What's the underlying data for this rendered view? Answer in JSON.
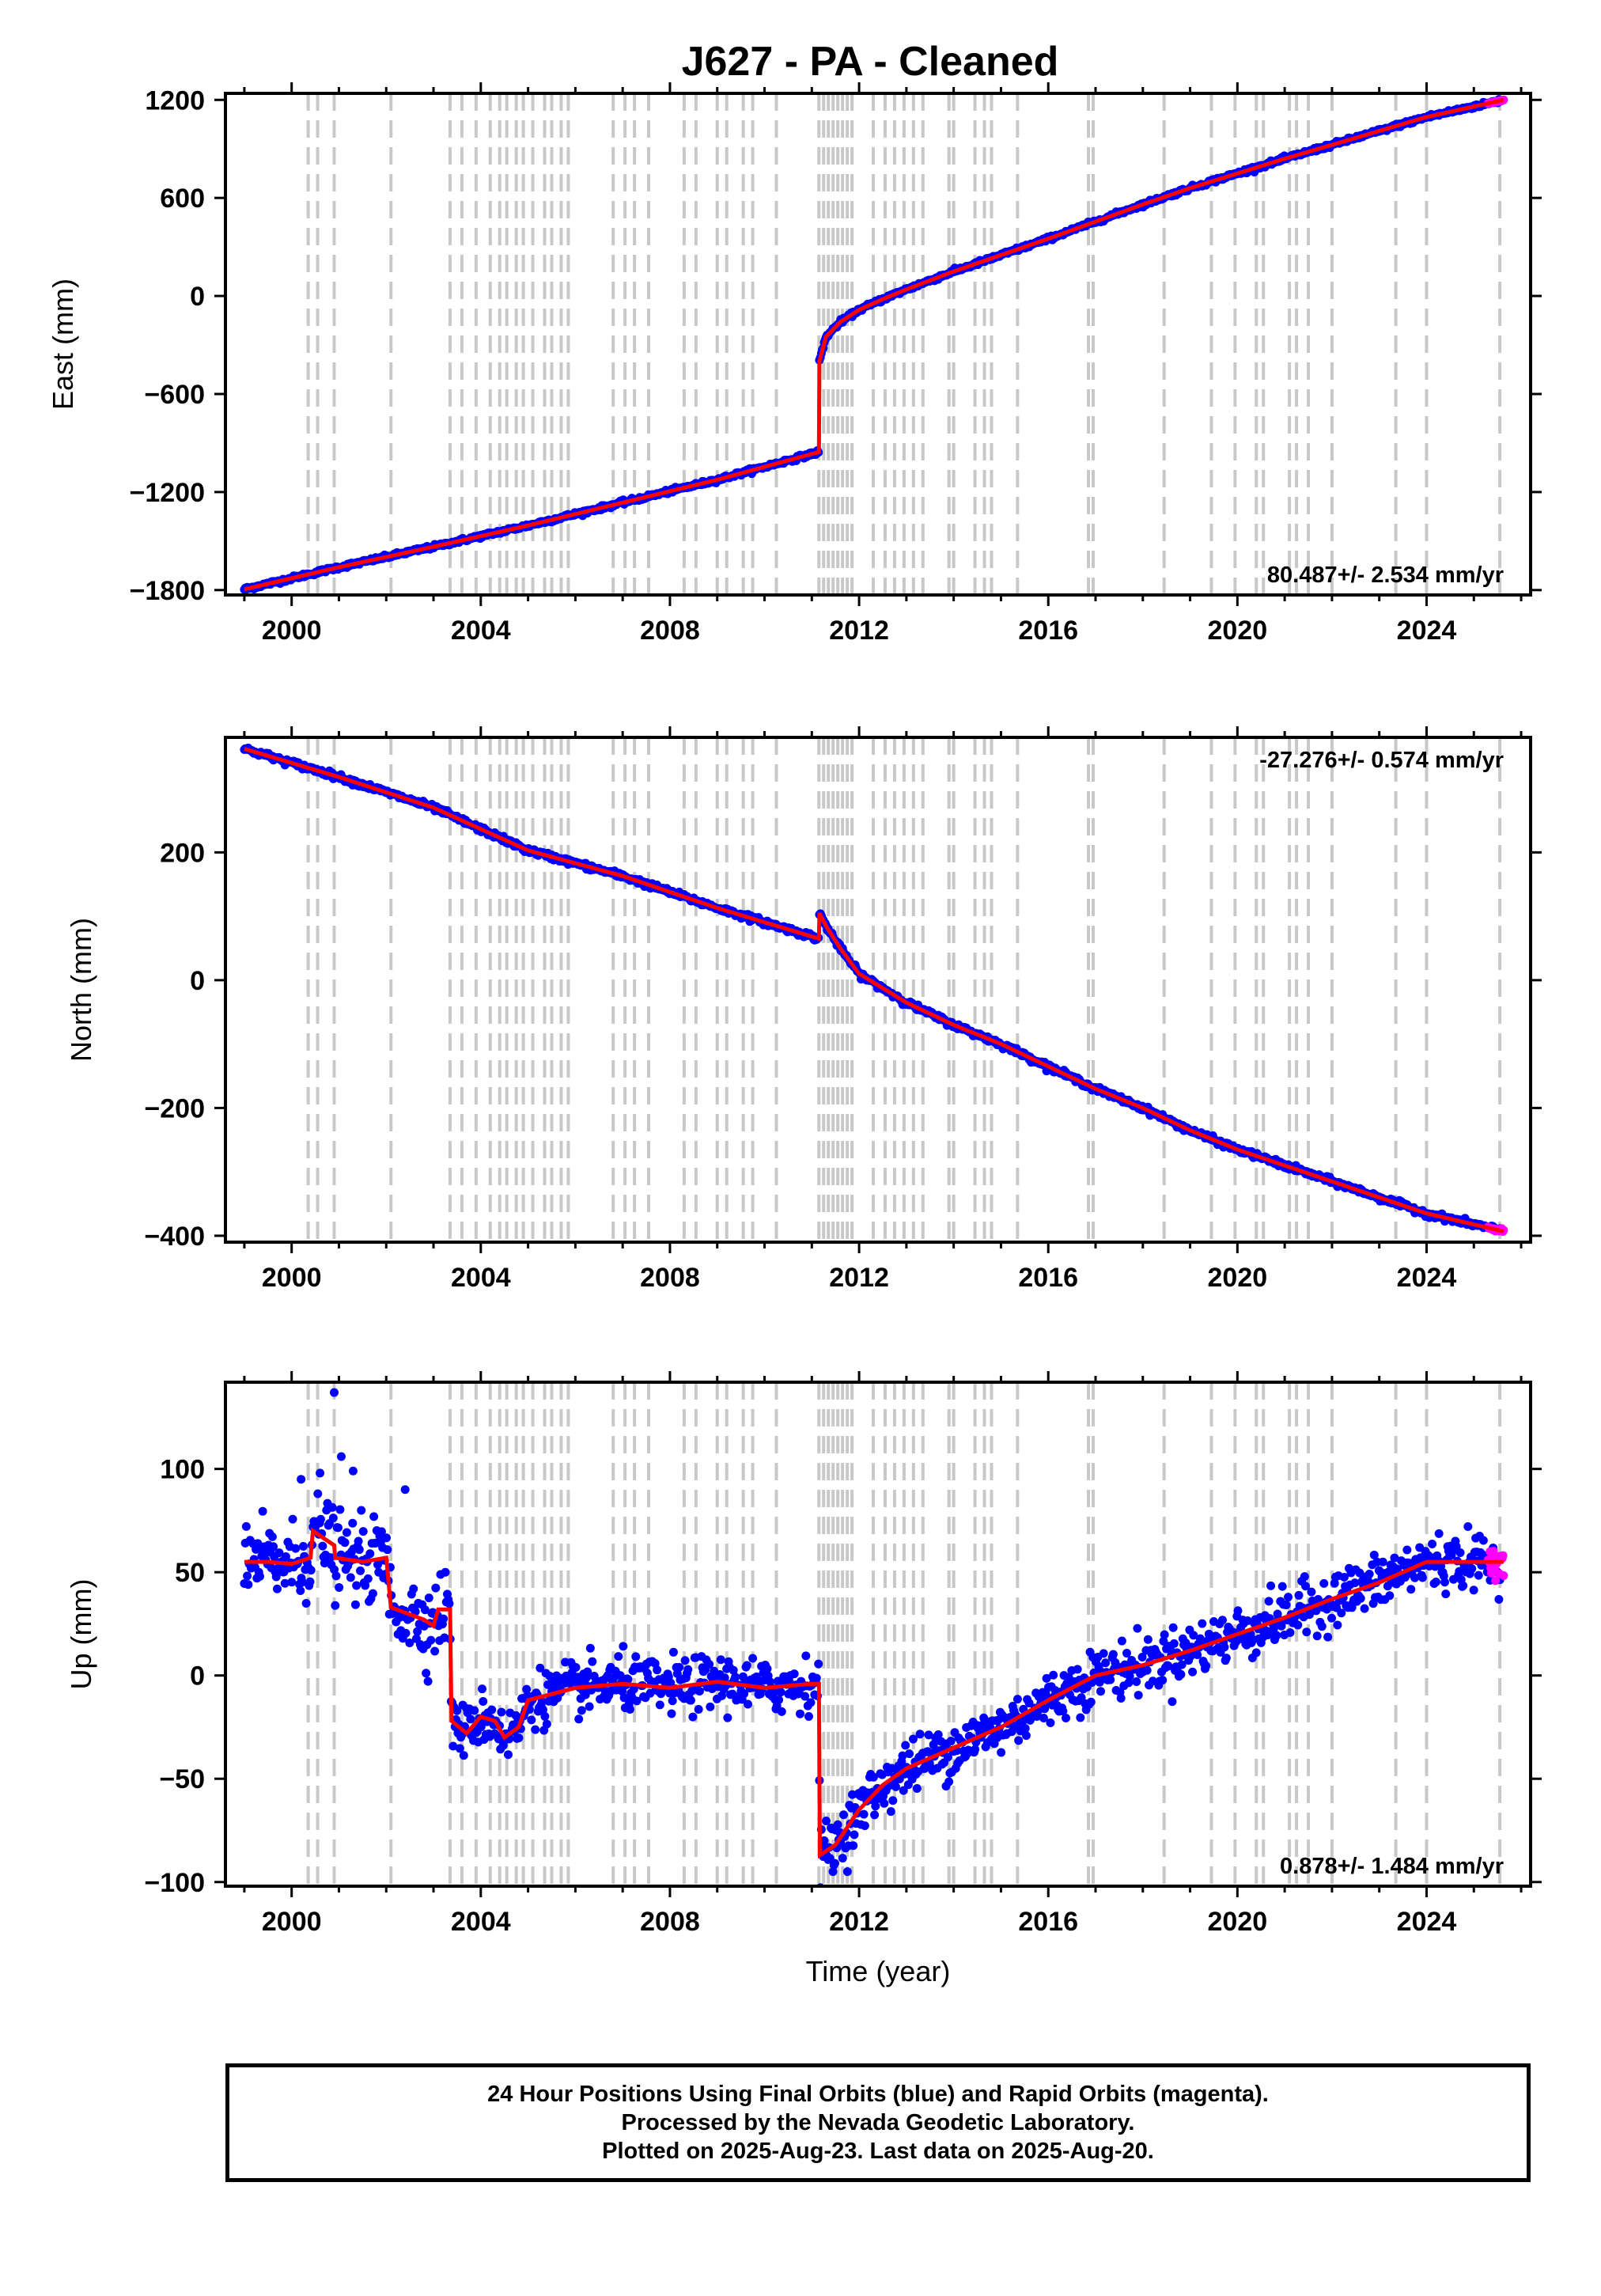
{
  "colors": {
    "final_points": "#0000ff",
    "rapid_points": "#ff00ff",
    "model_line": "#ff0000",
    "event_lines": "#c8c8c8",
    "frame": "#000000"
  },
  "chart_data": [
    {
      "type": "scatter",
      "title": "J627  - PA - Cleaned",
      "ylabel": "East (mm)",
      "xlim": [
        1998.6,
        2026.2
      ],
      "ylim": [
        -1830,
        1240
      ],
      "yticks": [
        -1800,
        -1200,
        -600,
        0,
        600,
        1200
      ],
      "xticks": [
        2000,
        2004,
        2008,
        2012,
        2016,
        2020,
        2024
      ],
      "tick_labels_x": [
        "2000",
        "2004",
        "2008",
        "2012",
        "2016",
        "2020",
        "2024"
      ],
      "rate_label": "80.487+/- 2.534 mm/yr",
      "series": [
        {
          "name": "Final Orbits",
          "color": "blue",
          "x_range": [
            1999.0,
            2025.55
          ]
        },
        {
          "name": "Rapid Orbits",
          "color": "magenta",
          "x_range": [
            2025.3,
            2025.63
          ]
        }
      ],
      "trend": [
        [
          1999.0,
          -1795
        ],
        [
          2001.0,
          -1660
        ],
        [
          2003.0,
          -1535
        ],
        [
          2005.0,
          -1405
        ],
        [
          2007.0,
          -1265
        ],
        [
          2009.0,
          -1125
        ],
        [
          2011.15,
          -955
        ],
        [
          2011.16,
          -400
        ],
        [
          2011.3,
          -250
        ],
        [
          2011.6,
          -160
        ],
        [
          2012.0,
          -85
        ],
        [
          2012.5,
          -20
        ],
        [
          2013.0,
          40
        ],
        [
          2014.0,
          150
        ],
        [
          2015.0,
          250
        ],
        [
          2016.0,
          350
        ],
        [
          2017.0,
          455
        ],
        [
          2018.0,
          560
        ],
        [
          2019.0,
          660
        ],
        [
          2020.0,
          750
        ],
        [
          2021.0,
          840
        ],
        [
          2022.0,
          925
        ],
        [
          2023.0,
          1010
        ],
        [
          2024.0,
          1095
        ],
        [
          2025.63,
          1200
        ]
      ]
    },
    {
      "type": "scatter",
      "ylabel": "North (mm)",
      "xlim": [
        1998.6,
        2026.2
      ],
      "ylim": [
        -410,
        380
      ],
      "yticks": [
        -400,
        -200,
        0,
        200
      ],
      "xticks": [
        2000,
        2004,
        2008,
        2012,
        2016,
        2020,
        2024
      ],
      "tick_labels_x": [
        "2000",
        "2004",
        "2008",
        "2012",
        "2016",
        "2020",
        "2024"
      ],
      "rate_label": "-27.276+/- 0.574 mm/yr",
      "series": [
        {
          "name": "Final Orbits",
          "color": "blue",
          "x_range": [
            1999.0,
            2025.55
          ]
        },
        {
          "name": "Rapid Orbits",
          "color": "magenta",
          "x_range": [
            2025.3,
            2025.63
          ]
        }
      ],
      "trend": [
        [
          1999.0,
          362
        ],
        [
          2001.0,
          318
        ],
        [
          2003.0,
          270
        ],
        [
          2005.0,
          203
        ],
        [
          2007.0,
          163
        ],
        [
          2009.0,
          113
        ],
        [
          2011.15,
          65
        ],
        [
          2011.16,
          105
        ],
        [
          2011.3,
          85
        ],
        [
          2011.6,
          50
        ],
        [
          2012.0,
          10
        ],
        [
          2013.0,
          -35
        ],
        [
          2014.0,
          -70
        ],
        [
          2015.0,
          -100
        ],
        [
          2016.0,
          -135
        ],
        [
          2017.0,
          -170
        ],
        [
          2018.0,
          -200
        ],
        [
          2019.0,
          -235
        ],
        [
          2020.0,
          -265
        ],
        [
          2021.0,
          -290
        ],
        [
          2022.0,
          -315
        ],
        [
          2023.0,
          -340
        ],
        [
          2024.0,
          -365
        ],
        [
          2025.63,
          -393
        ]
      ]
    },
    {
      "type": "scatter",
      "ylabel": "Up (mm)",
      "xlabel": "Time (year)",
      "xlim": [
        1998.6,
        2026.2
      ],
      "ylim": [
        -102,
        142
      ],
      "yticks": [
        -100,
        -50,
        0,
        50,
        100
      ],
      "xticks": [
        2000,
        2004,
        2008,
        2012,
        2016,
        2020,
        2024
      ],
      "tick_labels_x": [
        "2000",
        "2004",
        "2008",
        "2012",
        "2016",
        "2020",
        "2024"
      ],
      "rate_label": "0.878+/- 1.484 mm/yr",
      "series": [
        {
          "name": "Final Orbits",
          "color": "blue",
          "x_range": [
            1999.0,
            2025.55
          ]
        },
        {
          "name": "Rapid Orbits",
          "color": "magenta",
          "x_range": [
            2025.3,
            2025.63
          ]
        }
      ],
      "trend": [
        [
          1999.0,
          55
        ],
        [
          1999.5,
          55
        ],
        [
          2000.0,
          54
        ],
        [
          2000.4,
          57
        ],
        [
          2000.45,
          70
        ],
        [
          2000.9,
          63
        ],
        [
          2000.92,
          57
        ],
        [
          2001.5,
          55
        ],
        [
          2002.0,
          57
        ],
        [
          2002.1,
          33
        ],
        [
          2002.8,
          27
        ],
        [
          2003.0,
          24
        ],
        [
          2003.1,
          32
        ],
        [
          2003.35,
          32
        ],
        [
          2003.38,
          -22
        ],
        [
          2003.7,
          -28
        ],
        [
          2004.0,
          -20
        ],
        [
          2004.3,
          -22
        ],
        [
          2004.5,
          -30
        ],
        [
          2004.8,
          -25
        ],
        [
          2005.0,
          -12
        ],
        [
          2006.0,
          -6
        ],
        [
          2007.0,
          -4
        ],
        [
          2008.0,
          -6
        ],
        [
          2009.0,
          -3
        ],
        [
          2010.0,
          -6
        ],
        [
          2011.0,
          -4
        ],
        [
          2011.15,
          -4
        ],
        [
          2011.17,
          -87
        ],
        [
          2011.5,
          -82
        ],
        [
          2012.0,
          -65
        ],
        [
          2012.5,
          -53
        ],
        [
          2013.0,
          -45
        ],
        [
          2014.0,
          -35
        ],
        [
          2015.0,
          -25
        ],
        [
          2016.0,
          -12
        ],
        [
          2017.0,
          0
        ],
        [
          2018.0,
          5
        ],
        [
          2019.0,
          12
        ],
        [
          2020.0,
          20
        ],
        [
          2021.0,
          28
        ],
        [
          2022.0,
          37
        ],
        [
          2023.0,
          45
        ],
        [
          2024.0,
          55
        ],
        [
          2025.63,
          55
        ]
      ]
    }
  ],
  "event_years": [
    2000.35,
    2000.55,
    2000.9,
    2002.1,
    2003.35,
    2003.6,
    2003.9,
    2004.2,
    2004.4,
    2004.55,
    2004.75,
    2004.9,
    2005.1,
    2005.35,
    2005.5,
    2005.7,
    2005.85,
    2006.8,
    2007.05,
    2007.25,
    2007.55,
    2008.3,
    2008.55,
    2009.0,
    2009.2,
    2009.55,
    2009.75,
    2010.25,
    2011.15,
    2011.25,
    2011.35,
    2011.45,
    2011.55,
    2011.65,
    2011.75,
    2011.85,
    2012.3,
    2012.55,
    2012.75,
    2012.95,
    2013.15,
    2013.35,
    2013.9,
    2014.0,
    2014.45,
    2014.65,
    2014.8,
    2015.35,
    2016.85,
    2016.95,
    2018.45,
    2019.45,
    2019.95,
    2020.4,
    2020.55,
    2021.1,
    2021.25,
    2021.5,
    2022.0,
    2023.35,
    2024.0,
    2025.55
  ],
  "footer": {
    "line1": "24 Hour Positions Using Final Orbits (blue) and Rapid Orbits (magenta).",
    "line2": "Processed by the Nevada Geodetic Laboratory.",
    "line3": "Plotted on 2025-Aug-23. Last data on 2025-Aug-20."
  }
}
